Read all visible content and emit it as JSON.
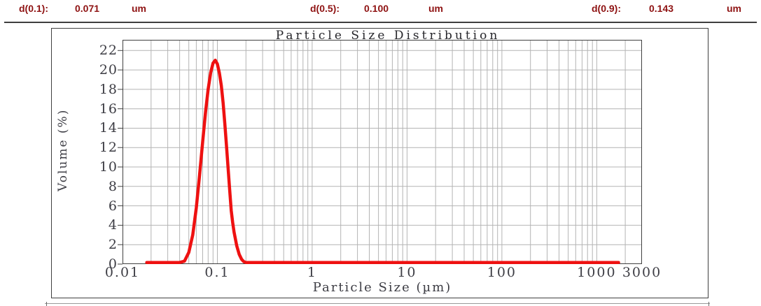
{
  "header": {
    "metrics": [
      {
        "label": "d(0.1):",
        "value": "0.071",
        "unit": "um"
      },
      {
        "label": "d(0.5):",
        "value": "0.100",
        "unit": "um"
      },
      {
        "label": "d(0.9):",
        "value": "0.143",
        "unit": "um"
      }
    ],
    "text_color": "#8e1212"
  },
  "chart_data": {
    "type": "line",
    "title": "Particle Size Distribution",
    "xlabel": "Particle Size (µm)",
    "ylabel": "Volume (%)",
    "x_scale": "log",
    "xlim": [
      0.01,
      3000
    ],
    "ylim": [
      0,
      23.1
    ],
    "x_ticks": [
      0.01,
      0.1,
      1,
      10,
      100,
      1000,
      3000
    ],
    "x_tick_labels": [
      "0.01",
      "0.1",
      "1",
      "10",
      "100",
      "1000",
      "3000"
    ],
    "y_ticks": [
      0,
      2,
      4,
      6,
      8,
      10,
      12,
      14,
      16,
      18,
      20,
      22
    ],
    "grid": true,
    "grid_color": "#b4b4b4",
    "line_color": "#ee1111",
    "peak": {
      "x_um": 0.095,
      "y_pct": 21.0
    },
    "series": [
      {
        "name": "volume-distribution",
        "points": [
          [
            0.018,
            0
          ],
          [
            0.02,
            0
          ],
          [
            0.025,
            0
          ],
          [
            0.03,
            0
          ],
          [
            0.035,
            0
          ],
          [
            0.04,
            0.05
          ],
          [
            0.045,
            0.3
          ],
          [
            0.05,
            1.2
          ],
          [
            0.055,
            3.0
          ],
          [
            0.06,
            5.8
          ],
          [
            0.065,
            9.2
          ],
          [
            0.07,
            12.6
          ],
          [
            0.075,
            15.6
          ],
          [
            0.08,
            18.0
          ],
          [
            0.085,
            19.7
          ],
          [
            0.09,
            20.7
          ],
          [
            0.095,
            21.0
          ],
          [
            0.1,
            20.6
          ],
          [
            0.105,
            19.7
          ],
          [
            0.11,
            18.4
          ],
          [
            0.115,
            16.6
          ],
          [
            0.12,
            14.4
          ],
          [
            0.125,
            12.1
          ],
          [
            0.13,
            9.8
          ],
          [
            0.135,
            7.6
          ],
          [
            0.14,
            5.5
          ],
          [
            0.145,
            4.3
          ],
          [
            0.15,
            3.3
          ],
          [
            0.16,
            1.9
          ],
          [
            0.17,
            1.0
          ],
          [
            0.18,
            0.5
          ],
          [
            0.19,
            0.25
          ],
          [
            0.2,
            0.12
          ],
          [
            0.21,
            0.05
          ],
          [
            0.22,
            0.02
          ],
          [
            0.24,
            0
          ],
          [
            0.3,
            0
          ],
          [
            0.5,
            0
          ],
          [
            1,
            0
          ],
          [
            5,
            0
          ],
          [
            10,
            0
          ],
          [
            50,
            0
          ],
          [
            100,
            0
          ],
          [
            500,
            0
          ],
          [
            1000,
            0
          ],
          [
            1700,
            0
          ]
        ]
      }
    ]
  }
}
